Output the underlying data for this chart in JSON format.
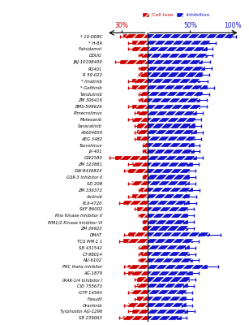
{
  "labels": [
    "* 10-DEBC",
    "* H-89",
    "Falnidamol",
    "DDUG",
    "JNJ-10198409",
    "PQ401",
    "R 59-022",
    "* Imatinib",
    "* Gefitinib",
    "Tandutinib",
    "ZM 306416",
    "BMS-599626",
    "Pimecrolimus",
    "Motesanib",
    "Saracatinib",
    "AS604850",
    "AEG 3482",
    "Tacrolimus",
    "JX-401",
    "GW2580",
    "ZM 323881",
    "GW-843682X",
    "GSK-3 Inhibitor II",
    "SD 208",
    "ZM 336372",
    "Axitinib",
    "PLX-4720",
    "SKF 86002",
    "Rho Kinase Inhibitor V",
    "PIM1/2 Kinase Inhibitor VI",
    "ZM 39923",
    "DMAT",
    "TCS PIM-1 1",
    "SB 431542",
    "CT-98014",
    "NU-6102",
    "PKC theta inhibitor",
    "AG-1879",
    "IRAK-1/4 Inhibitor I",
    "CID 755673",
    "GTP 14564",
    "Fasudil",
    "Orantinib",
    "Tyrphostin AG-1296",
    "SB 239063"
  ],
  "cell_loss": [
    28,
    18,
    18,
    8,
    32,
    8,
    8,
    18,
    18,
    8,
    8,
    18,
    12,
    18,
    12,
    12,
    12,
    4,
    4,
    38,
    18,
    22,
    4,
    18,
    8,
    18,
    28,
    12,
    8,
    4,
    4,
    22,
    28,
    8,
    8,
    8,
    22,
    22,
    12,
    12,
    18,
    12,
    22,
    18,
    28
  ],
  "cell_loss_err": [
    4,
    4,
    4,
    2,
    6,
    2,
    2,
    4,
    4,
    2,
    2,
    4,
    3,
    4,
    3,
    3,
    3,
    1,
    1,
    6,
    4,
    5,
    1,
    4,
    2,
    4,
    5,
    3,
    2,
    1,
    1,
    5,
    5,
    2,
    2,
    2,
    5,
    5,
    3,
    3,
    4,
    3,
    5,
    4,
    5
  ],
  "inhibition": [
    100,
    73,
    70,
    70,
    65,
    68,
    65,
    62,
    70,
    65,
    62,
    62,
    58,
    56,
    56,
    58,
    56,
    55,
    55,
    58,
    53,
    50,
    50,
    50,
    53,
    50,
    50,
    48,
    48,
    48,
    48,
    73,
    53,
    50,
    50,
    53,
    70,
    53,
    50,
    48,
    46,
    46,
    46,
    48,
    40
  ],
  "inhibition_err": [
    4,
    7,
    6,
    6,
    8,
    7,
    7,
    8,
    8,
    7,
    7,
    7,
    7,
    7,
    7,
    7,
    7,
    6,
    6,
    7,
    7,
    6,
    6,
    6,
    8,
    7,
    7,
    6,
    6,
    6,
    6,
    13,
    7,
    6,
    6,
    7,
    13,
    7,
    6,
    6,
    6,
    6,
    6,
    7,
    6
  ],
  "cell_loss_color": "#cc0000",
  "inhibition_color": "#1414cc",
  "hatch": "///",
  "bar_height": 0.65,
  "figwidth": 3.07,
  "figheight": 4.0,
  "dpi": 100
}
